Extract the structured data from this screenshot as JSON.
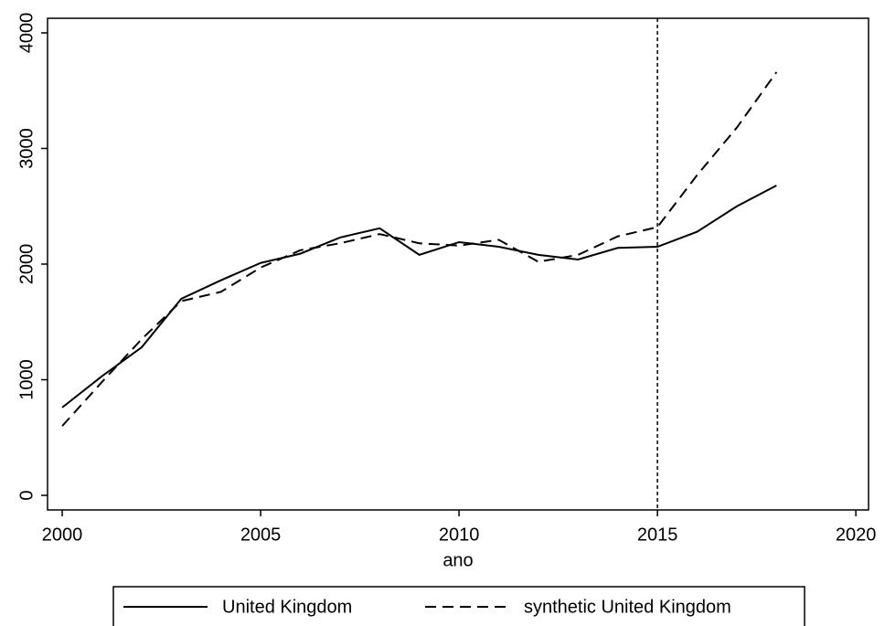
{
  "chart_data": {
    "type": "line",
    "x_label": "ano",
    "x": [
      2000,
      2001,
      2002,
      2003,
      2004,
      2005,
      2006,
      2007,
      2008,
      2009,
      2010,
      2011,
      2012,
      2013,
      2014,
      2015,
      2016,
      2017,
      2018
    ],
    "series": [
      {
        "name": "United Kingdom",
        "color": "#000000",
        "dash": "solid",
        "values": [
          760,
          1030,
          1280,
          1700,
          1860,
          2010,
          2090,
          2230,
          2310,
          2080,
          2190,
          2150,
          2080,
          2040,
          2140,
          2150,
          2280,
          2500,
          2680
        ]
      },
      {
        "name": "synthetic United Kingdom",
        "color": "#000000",
        "dash": "dashed",
        "values": [
          600,
          980,
          1350,
          1680,
          1760,
          1970,
          2120,
          2180,
          2260,
          2180,
          2160,
          2210,
          2020,
          2080,
          2240,
          2320,
          2770,
          3180,
          3660
        ]
      }
    ],
    "xline": 2015,
    "xlim": [
      1999.63,
      2020.32
    ],
    "xticks": [
      2000,
      2005,
      2010,
      2015,
      2020
    ],
    "ylim": [
      -126,
      4126
    ],
    "yticks": [
      0,
      1000,
      2000,
      3000,
      4000
    ],
    "grid": false,
    "legend": "bottom"
  }
}
